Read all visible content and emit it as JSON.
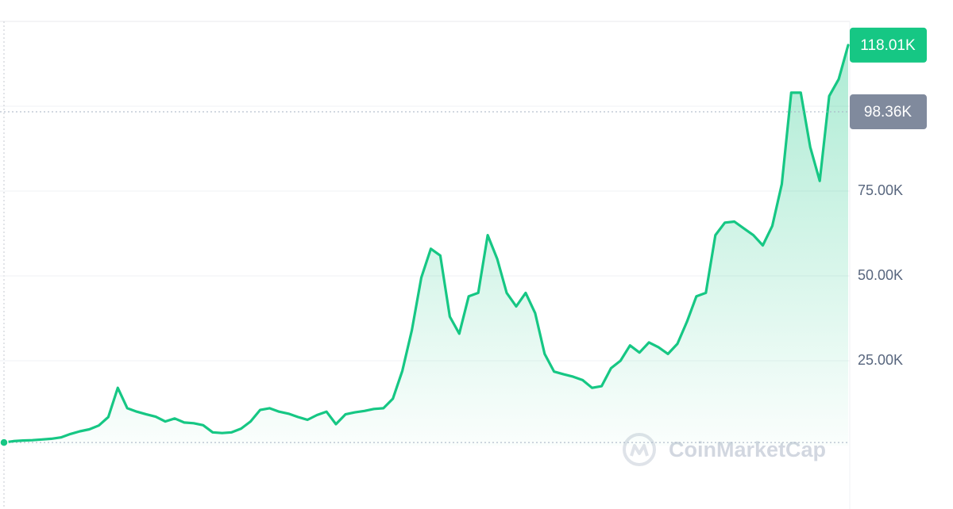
{
  "chart_data": {
    "type": "area",
    "color": "#16c784",
    "values": [
      0.9,
      1.3,
      1.5,
      1.6,
      1.8,
      2.0,
      2.4,
      3.4,
      4.2,
      4.8,
      5.9,
      8.4,
      17,
      11,
      10,
      9.2,
      8.5,
      7.1,
      8,
      6.8,
      6.6,
      6,
      3.9,
      3.7,
      3.9,
      5,
      7.1,
      10.5,
      11,
      10,
      9.4,
      8.4,
      7.6,
      9,
      10,
      6.3,
      9.2,
      9.8,
      10.2,
      10.8,
      11,
      13.8,
      22,
      34,
      49.5,
      58,
      56,
      38,
      33,
      44,
      45,
      62,
      55,
      45,
      41,
      45,
      39,
      27,
      21.8,
      21,
      20.3,
      19.3,
      17,
      17.5,
      22.8,
      25,
      29.5,
      27.4,
      30.4,
      29,
      27,
      30,
      36.5,
      44,
      45,
      62,
      65.7,
      66,
      64,
      62,
      59,
      64.7,
      77,
      104,
      104,
      88,
      78,
      103,
      108,
      118.01
    ],
    "ylim": [
      0,
      125
    ],
    "yticks": [
      {
        "value": 25,
        "label": "25.00K"
      },
      {
        "value": 50,
        "label": "50.00K"
      },
      {
        "value": 75,
        "label": "75.00K"
      }
    ],
    "grid": true,
    "price_tags": [
      {
        "value": 118.01,
        "label": "118.01K",
        "color": "#16c784"
      },
      {
        "value": 98.36,
        "label": "98.36K",
        "color": "#808a9d"
      }
    ],
    "watermark": "CoinMarketCap"
  }
}
